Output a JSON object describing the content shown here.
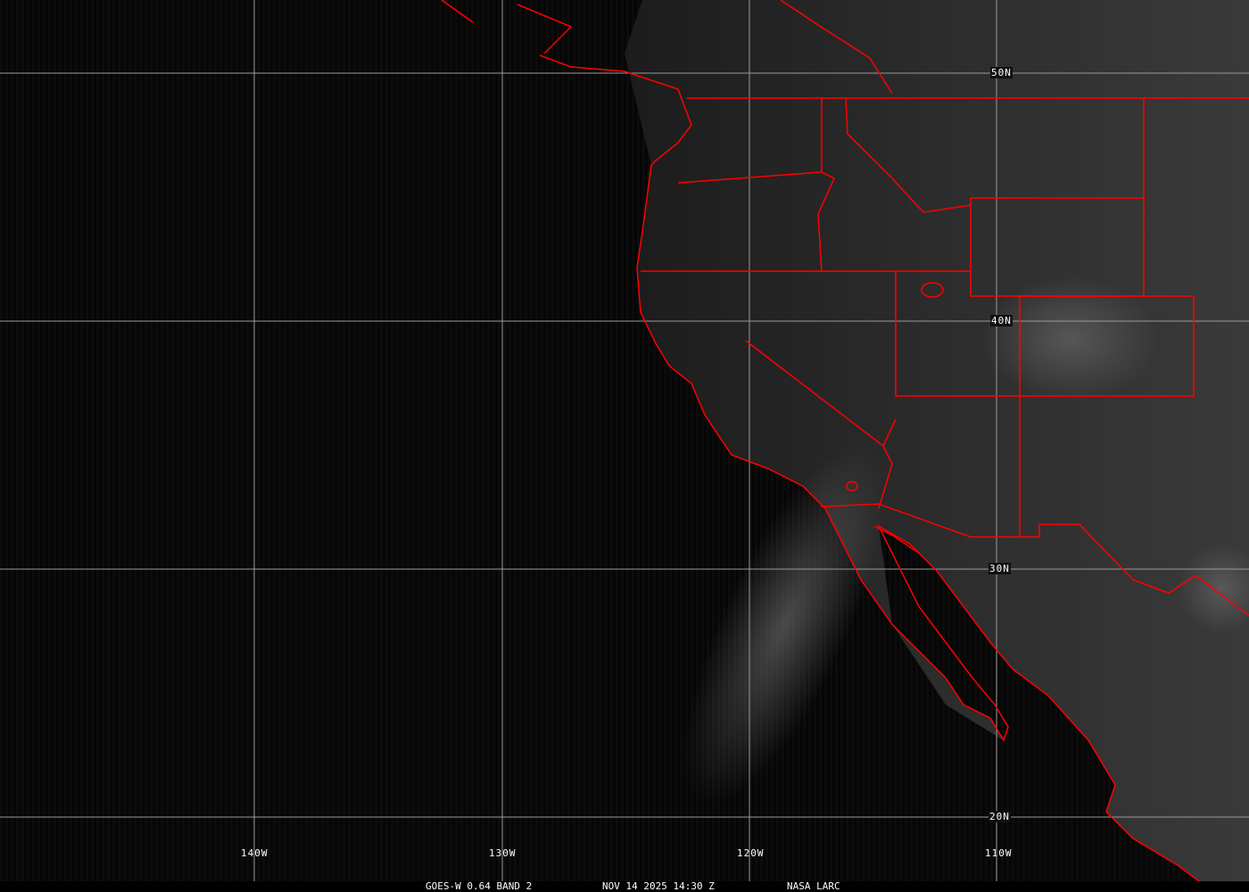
{
  "caption": {
    "satellite": "GOES-W 0.64 BAND 2",
    "datetime": "NOV 14 2025 14:30 Z",
    "credit": "NASA LARC"
  },
  "grid_labels": {
    "lon": [
      "140W",
      "130W",
      "120W",
      "110W"
    ],
    "lat": [
      "50N",
      "40N",
      "30N",
      "20N"
    ]
  },
  "colors": {
    "borders": "#ff0000",
    "grid": "#a0a0a0",
    "background": "#000000"
  }
}
